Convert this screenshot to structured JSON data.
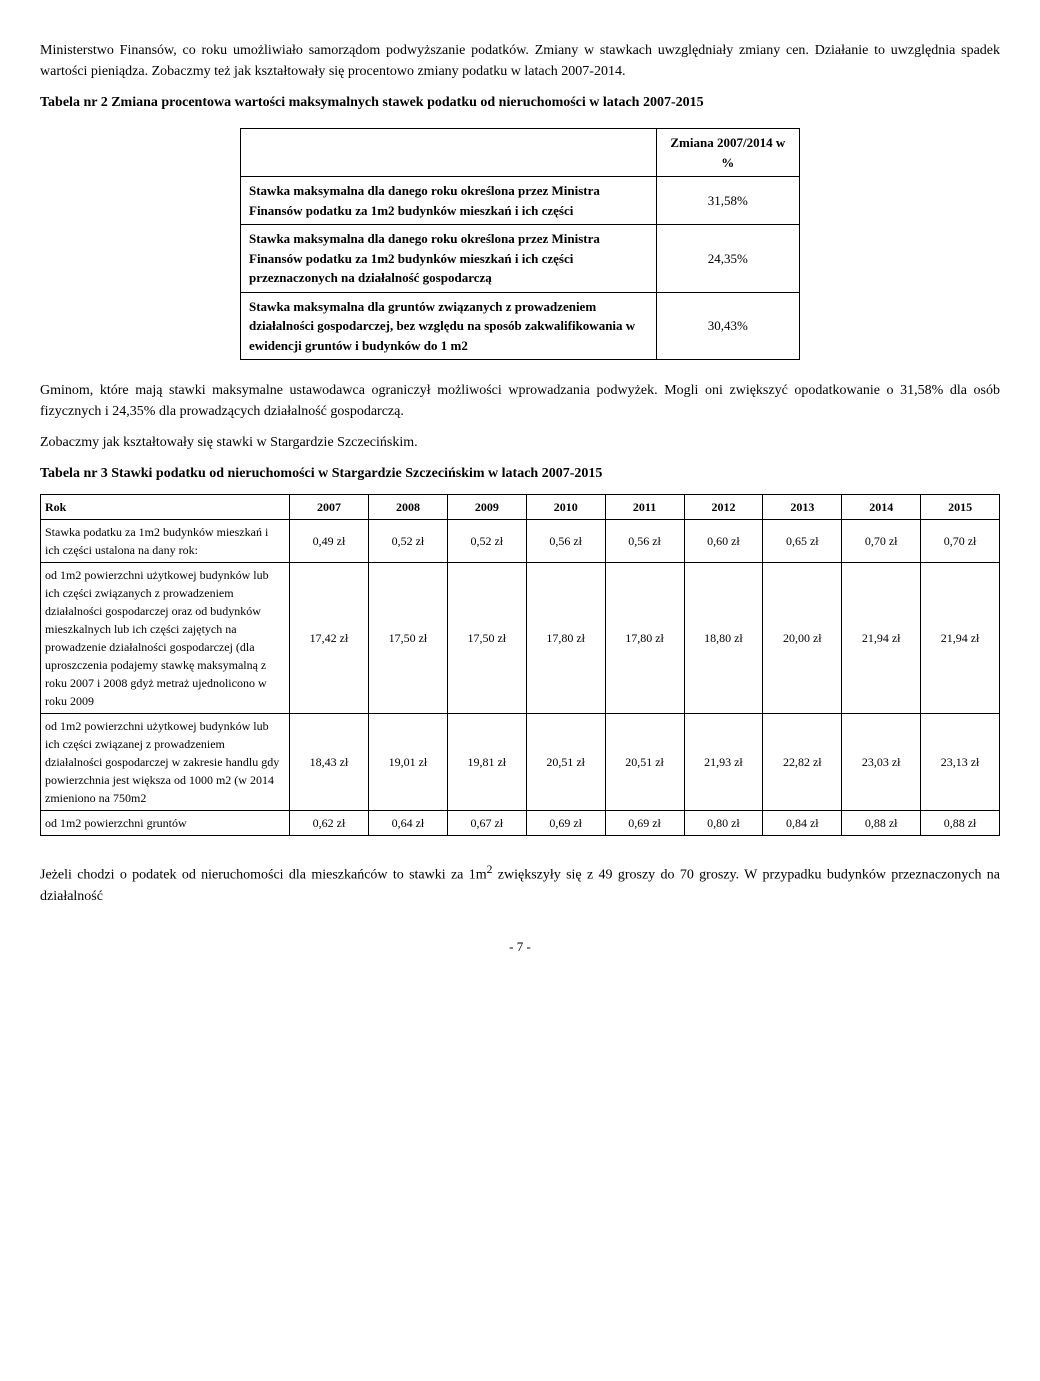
{
  "para1": "Ministerstwo Finansów, co roku umożliwiało samorządom podwyższanie podatków. Zmiany w stawkach uwzględniały zmiany cen. Działanie to uwzględnia spadek wartości pieniądza. Zobaczmy też jak kształtowały się procentowo zmiany podatku w latach 2007-2014.",
  "table2_caption": "Tabela nr 2 Zmiana procentowa wartości maksymalnych stawek podatku od nieruchomości w latach 2007-2015",
  "table2": {
    "header": "Zmiana 2007/2014 w %",
    "rows": [
      {
        "label": "Stawka maksymalna dla danego roku określona przez Ministra Finansów podatku za 1m2 budynków mieszkań i ich części",
        "val": "31,58%"
      },
      {
        "label": "Stawka maksymalna dla danego roku określona przez Ministra Finansów podatku za 1m2 budynków mieszkań i ich części przeznaczonych na działalność gospodarczą",
        "val": "24,35%"
      },
      {
        "label": "Stawka maksymalna dla gruntów związanych z prowadzeniem działalności gospodarczej, bez względu na sposób zakwalifikowania w ewidencji gruntów i budynków do 1 m2",
        "val": "30,43%"
      }
    ]
  },
  "para2": "Gminom, które mają stawki maksymalne ustawodawca ograniczył możliwości wprowadzania podwyżek. Mogli oni zwiększyć opodatkowanie o 31,58% dla osób fizycznych i 24,35% dla prowadzących działalność gospodarczą.",
  "para3": "Zobaczmy jak kształtowały się stawki w Stargardzie Szczecińskim.",
  "table3_caption": "Tabela nr 3 Stawki podatku od nieruchomości w Stargardzie Szczecińskim w latach 2007-2015",
  "table3": {
    "header_row": [
      "Rok",
      "2007",
      "2008",
      "2009",
      "2010",
      "2011",
      "2012",
      "2013",
      "2014",
      "2015"
    ],
    "rows": [
      {
        "label": "Stawka podatku za 1m2 budynków mieszkań i ich części ustalona na dany rok:",
        "vals": [
          "0,49 zł",
          "0,52 zł",
          "0,52 zł",
          "0,56 zł",
          "0,56 zł",
          "0,60 zł",
          "0,65 zł",
          "0,70 zł",
          "0,70 zł"
        ]
      },
      {
        "label": "od 1m2 powierzchni użytkowej budynków lub ich części związanych z prowadzeniem działalności gospodarczej oraz od budynków mieszkalnych lub ich części zajętych na prowadzenie działalności gospodarczej (dla uproszczenia podajemy stawkę maksymalną z roku 2007 i 2008 gdyż metraż ujednolicono w roku 2009",
        "vals": [
          "17,42 zł",
          "17,50 zł",
          "17,50 zł",
          "17,80 zł",
          "17,80 zł",
          "18,80 zł",
          "20,00 zł",
          "21,94 zł",
          "21,94 zł"
        ]
      },
      {
        "label": "od 1m2 powierzchni użytkowej budynków lub ich części związanej z prowadzeniem działalności gospodarczej w zakresie handlu gdy powierzchnia jest większa od 1000 m2 (w 2014 zmieniono na 750m2",
        "vals": [
          "18,43 zł",
          "19,01 zł",
          "19,81 zł",
          "20,51 zł",
          "20,51 zł",
          "21,93 zł",
          "22,82 zł",
          "23,03 zł",
          "23,13 zł"
        ]
      },
      {
        "label": "od 1m2 powierzchni gruntów",
        "vals": [
          "0,62 zł",
          "0,64 zł",
          "0,67 zł",
          "0,69 zł",
          "0,69 zł",
          "0,80 zł",
          "0,84 zł",
          "0,88 zł",
          "0,88 zł"
        ]
      }
    ]
  },
  "para4_a": "Jeżeli chodzi o podatek od nieruchomości dla mieszkańców to stawki za 1m",
  "para4_sup": "2",
  "para4_b": " zwiększyły się z 49 groszy do 70 groszy. W przypadku budynków przeznaczonych na działalność",
  "page_num": "- 7 -"
}
